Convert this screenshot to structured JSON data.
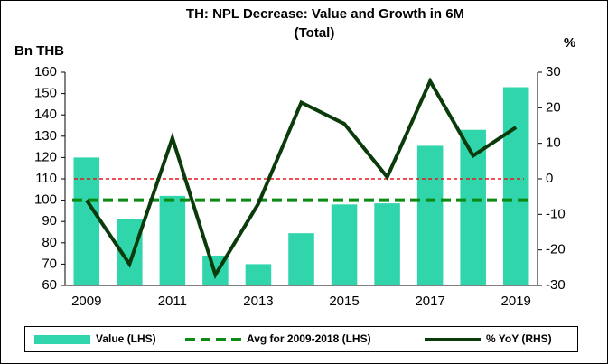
{
  "chart_data": {
    "type": "bar_line",
    "title": [
      "TH: NPL Decrease: Value and Growth in 6M",
      "(Total)"
    ],
    "y_label": "Bn THB",
    "y2_label": "%",
    "categories": [
      "2009",
      null,
      "2011",
      null,
      "2013",
      null,
      "2015",
      null,
      "2017",
      null,
      "2019"
    ],
    "series": [
      {
        "name": "Value (LHS)",
        "color": "#30d5ab",
        "kind": "bar",
        "values": [
          120,
          91,
          102,
          74,
          70,
          84.5,
          98,
          98.5,
          125.5,
          133,
          153
        ]
      },
      {
        "name": "Avg for 2009-2018 (LHS)",
        "color": "#0b8a14",
        "kind": "hline",
        "value": 100
      },
      {
        "name": "% YoY (RHS)",
        "color": "#0b3b0b",
        "kind": "line",
        "axis": "y2",
        "values": [
          -6,
          -24,
          11.5,
          -27,
          -7,
          21.5,
          15.5,
          0.5,
          27.5,
          6.5,
          14.5
        ]
      }
    ],
    "ylim": [
      60,
      160
    ],
    "yticks": [
      60,
      70,
      80,
      90,
      100,
      110,
      120,
      130,
      140,
      150,
      160
    ],
    "y2lim": [
      -30,
      30
    ],
    "y2ticks": [
      -30,
      -20,
      -10,
      0,
      10,
      20,
      30
    ],
    "zero_line_color": "#e8141c",
    "legend": "bottom"
  }
}
